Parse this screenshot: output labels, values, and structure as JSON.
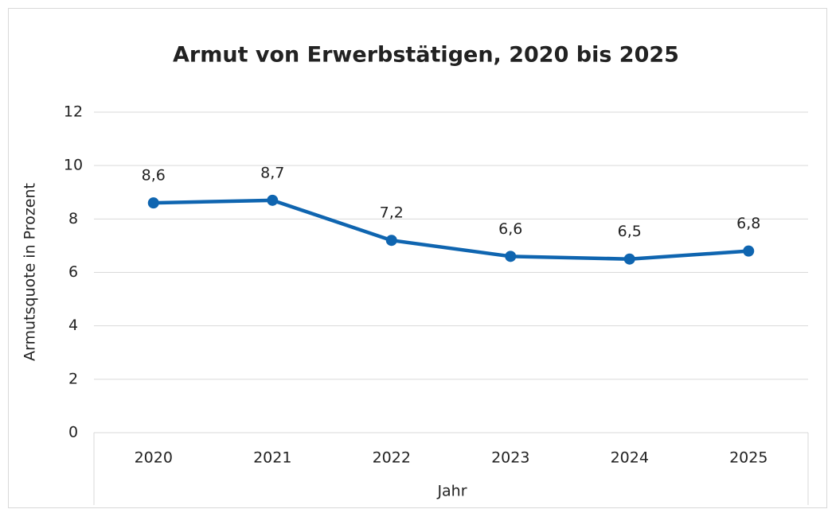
{
  "chart_data": {
    "type": "line",
    "title": "Armut von Erwerbstätigen, 2020 bis 2025",
    "x_label": "Jahr",
    "y_label": "Armutsquote in Prozent",
    "categories": [
      "2020",
      "2021",
      "2022",
      "2023",
      "2024",
      "2025"
    ],
    "series": [
      {
        "color": "#0f65b0",
        "values": [
          8.6,
          8.7,
          7.2,
          6.6,
          6.5,
          6.8
        ],
        "value_labels": [
          "8,6",
          "8,7",
          "7,2",
          "6,6",
          "6,5",
          "6,8"
        ]
      }
    ],
    "ylim": [
      0,
      12
    ],
    "yticks": [
      0,
      2,
      4,
      6,
      8,
      10,
      12
    ],
    "grid": true
  }
}
